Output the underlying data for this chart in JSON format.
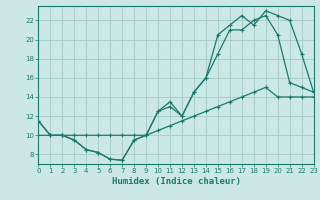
{
  "xlabel": "Humidex (Indice chaleur)",
  "bg_color": "#cce8e4",
  "grid_color": "#aacfcb",
  "line_color": "#1a7a6e",
  "xlim": [
    0,
    23
  ],
  "ylim": [
    7,
    23.5
  ],
  "xticks": [
    0,
    1,
    2,
    3,
    4,
    5,
    6,
    7,
    8,
    9,
    10,
    11,
    12,
    13,
    14,
    15,
    16,
    17,
    18,
    19,
    20,
    21,
    22,
    23
  ],
  "yticks": [
    8,
    10,
    12,
    14,
    16,
    18,
    20,
    22
  ],
  "series1_x": [
    0,
    1,
    2,
    3,
    4,
    5,
    6,
    7,
    8,
    9,
    10,
    11,
    12,
    13,
    14,
    15,
    16,
    17,
    18,
    19,
    20,
    21,
    22,
    23
  ],
  "series1_y": [
    11.5,
    10,
    10,
    9.5,
    8.5,
    8.2,
    7.5,
    7.4,
    9.5,
    10,
    12.5,
    13,
    12,
    14.5,
    16,
    18.5,
    21,
    21,
    22,
    22.5,
    20.5,
    15.5,
    15,
    14.5
  ],
  "series2_x": [
    0,
    1,
    2,
    3,
    4,
    5,
    6,
    7,
    8,
    9,
    10,
    11,
    12,
    13,
    14,
    15,
    16,
    17,
    18,
    19,
    20,
    21,
    22,
    23
  ],
  "series2_y": [
    10,
    10,
    10,
    10,
    10,
    10,
    10,
    10,
    10,
    10,
    10.5,
    11,
    11.5,
    12,
    12.5,
    13,
    13.5,
    14,
    14.5,
    15,
    14,
    14,
    14,
    14
  ],
  "series3_x": [
    0,
    1,
    2,
    3,
    4,
    5,
    6,
    7,
    8,
    9,
    10,
    11,
    12,
    13,
    14,
    15,
    16,
    17,
    18,
    19,
    20,
    21,
    22,
    23
  ],
  "series3_y": [
    11.5,
    10,
    10,
    9.5,
    8.5,
    8.2,
    7.5,
    7.4,
    9.5,
    10,
    12.5,
    13.5,
    12,
    14.5,
    16,
    20.5,
    21.5,
    22.5,
    21.5,
    23,
    22.5,
    22,
    18.5,
    14.5
  ]
}
